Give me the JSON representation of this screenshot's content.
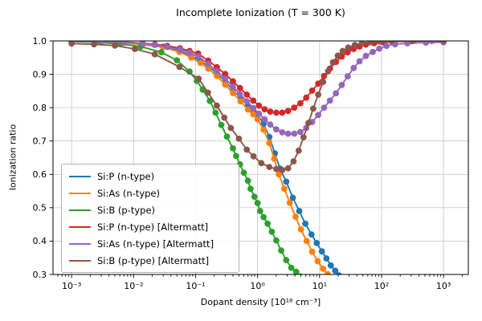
{
  "figure": {
    "background": "#ffffff"
  },
  "chart_data": {
    "type": "line",
    "title": "Incomplete Ionization (T = 300 K)",
    "xlabel": "Dopant density [10¹⁸ cm⁻³]",
    "ylabel": "Ionization ratio",
    "x_scale": "log",
    "xlim_log10": [
      -3.3,
      3.4
    ],
    "ylim": [
      0.3,
      1.0
    ],
    "grid": true,
    "grid_color": "#cccccc",
    "spine_color": "#000000",
    "legend_position": "lower left",
    "x_ticks": [
      {
        "value": 0.001,
        "label": "10⁻³"
      },
      {
        "value": 0.01,
        "label": "10⁻²"
      },
      {
        "value": 0.1,
        "label": "10⁻¹"
      },
      {
        "value": 1,
        "label": "10⁰"
      },
      {
        "value": 10,
        "label": "10¹"
      },
      {
        "value": 100,
        "label": "10²"
      },
      {
        "value": 1000,
        "label": "10³"
      }
    ],
    "y_ticks": [
      {
        "value": 0.3,
        "label": "0.3"
      },
      {
        "value": 0.4,
        "label": "0.4"
      },
      {
        "value": 0.5,
        "label": "0.5"
      },
      {
        "value": 0.6,
        "label": "0.6"
      },
      {
        "value": 0.7,
        "label": "0.7"
      },
      {
        "value": 0.8,
        "label": "0.8"
      },
      {
        "value": 0.9,
        "label": "0.9"
      },
      {
        "value": 1.0,
        "label": "1.0"
      }
    ],
    "series": [
      {
        "name": "Si:P (n-type)",
        "color": "#1f77b4",
        "points": [
          [
            0.001,
            1.0
          ],
          [
            0.003,
            0.998
          ],
          [
            0.007,
            0.995
          ],
          [
            0.014,
            0.991
          ],
          [
            0.03,
            0.983
          ],
          [
            0.055,
            0.971
          ],
          [
            0.085,
            0.955
          ],
          [
            0.12,
            0.94
          ],
          [
            0.16,
            0.924
          ],
          [
            0.22,
            0.903
          ],
          [
            0.3,
            0.878
          ],
          [
            0.4,
            0.853
          ],
          [
            0.53,
            0.829
          ],
          [
            0.7,
            0.806
          ],
          [
            0.85,
            0.793
          ],
          [
            1.0,
            0.78
          ],
          [
            1.25,
            0.752
          ],
          [
            1.55,
            0.712
          ],
          [
            1.9,
            0.663
          ],
          [
            2.3,
            0.617
          ],
          [
            2.9,
            0.578
          ],
          [
            3.7,
            0.53
          ],
          [
            4.7,
            0.49
          ],
          [
            5.9,
            0.452
          ],
          [
            7.4,
            0.42
          ],
          [
            9.0,
            0.394
          ],
          [
            10.9,
            0.369
          ],
          [
            12.9,
            0.348
          ],
          [
            15.2,
            0.327
          ],
          [
            17.9,
            0.311
          ],
          [
            20.5,
            0.297
          ]
        ]
      },
      {
        "name": "Si:As (n-type)",
        "color": "#ff7f0e",
        "points": [
          [
            0.001,
            1.0
          ],
          [
            0.003,
            0.998
          ],
          [
            0.007,
            0.994
          ],
          [
            0.014,
            0.989
          ],
          [
            0.03,
            0.981
          ],
          [
            0.055,
            0.967
          ],
          [
            0.085,
            0.95
          ],
          [
            0.12,
            0.934
          ],
          [
            0.16,
            0.917
          ],
          [
            0.22,
            0.895
          ],
          [
            0.3,
            0.869
          ],
          [
            0.4,
            0.844
          ],
          [
            0.53,
            0.819
          ],
          [
            0.7,
            0.794
          ],
          [
            0.85,
            0.78
          ],
          [
            1.0,
            0.765
          ],
          [
            1.25,
            0.734
          ],
          [
            1.55,
            0.694
          ],
          [
            1.85,
            0.647
          ],
          [
            2.2,
            0.6
          ],
          [
            2.7,
            0.557
          ],
          [
            3.3,
            0.515
          ],
          [
            4.1,
            0.473
          ],
          [
            5.0,
            0.435
          ],
          [
            6.2,
            0.4
          ],
          [
            7.6,
            0.368
          ],
          [
            9.3,
            0.34
          ],
          [
            11.4,
            0.317
          ],
          [
            13.5,
            0.301
          ],
          [
            14.8,
            0.292
          ]
        ]
      },
      {
        "name": "Si:B (p-type)",
        "color": "#2ca02c",
        "points": [
          [
            0.001,
            0.998
          ],
          [
            0.0025,
            0.996
          ],
          [
            0.006,
            0.991
          ],
          [
            0.013,
            0.983
          ],
          [
            0.028,
            0.966
          ],
          [
            0.05,
            0.942
          ],
          [
            0.08,
            0.908
          ],
          [
            0.105,
            0.88
          ],
          [
            0.13,
            0.854
          ],
          [
            0.17,
            0.82
          ],
          [
            0.21,
            0.785
          ],
          [
            0.26,
            0.748
          ],
          [
            0.32,
            0.713
          ],
          [
            0.4,
            0.678
          ],
          [
            0.45,
            0.655
          ],
          [
            0.52,
            0.63
          ],
          [
            0.6,
            0.605
          ],
          [
            0.7,
            0.581
          ],
          [
            0.77,
            0.557
          ],
          [
            0.89,
            0.533
          ],
          [
            1.0,
            0.514
          ],
          [
            1.1,
            0.49
          ],
          [
            1.25,
            0.472
          ],
          [
            1.45,
            0.452
          ],
          [
            1.7,
            0.428
          ],
          [
            2.0,
            0.402
          ],
          [
            2.4,
            0.372
          ],
          [
            2.9,
            0.343
          ],
          [
            3.5,
            0.32
          ],
          [
            4.2,
            0.308
          ],
          [
            4.9,
            0.294
          ]
        ]
      },
      {
        "name": "Si:P (n-type) [Altermatt]",
        "color": "#d62728",
        "points": [
          [
            0.001,
            1.0
          ],
          [
            0.003,
            0.999
          ],
          [
            0.007,
            0.997
          ],
          [
            0.014,
            0.993
          ],
          [
            0.022,
            0.99
          ],
          [
            0.035,
            0.985
          ],
          [
            0.056,
            0.978
          ],
          [
            0.08,
            0.97
          ],
          [
            0.11,
            0.962
          ],
          [
            0.16,
            0.941
          ],
          [
            0.22,
            0.921
          ],
          [
            0.3,
            0.901
          ],
          [
            0.4,
            0.879
          ],
          [
            0.52,
            0.859
          ],
          [
            0.67,
            0.839
          ],
          [
            0.85,
            0.821
          ],
          [
            1.05,
            0.806
          ],
          [
            1.3,
            0.795
          ],
          [
            1.6,
            0.788
          ],
          [
            2.0,
            0.785
          ],
          [
            2.5,
            0.785
          ],
          [
            3.1,
            0.79
          ],
          [
            3.9,
            0.8
          ],
          [
            4.9,
            0.813
          ],
          [
            6.1,
            0.83
          ],
          [
            7.6,
            0.851
          ],
          [
            9.5,
            0.872
          ],
          [
            11.8,
            0.895
          ],
          [
            14.7,
            0.917
          ],
          [
            18.3,
            0.937
          ],
          [
            22.8,
            0.953
          ],
          [
            28.4,
            0.966
          ],
          [
            35.4,
            0.976
          ],
          [
            44,
            0.983
          ],
          [
            56,
            0.989
          ],
          [
            76,
            0.993
          ],
          [
            105,
            0.996
          ],
          [
            160,
            0.998
          ],
          [
            300,
            0.999
          ],
          [
            650,
            1.0
          ],
          [
            1000,
            1.0
          ]
        ]
      },
      {
        "name": "Si:As (n-type) [Altermatt]",
        "color": "#9467bd",
        "points": [
          [
            0.001,
            1.0
          ],
          [
            0.003,
            0.998
          ],
          [
            0.007,
            0.996
          ],
          [
            0.014,
            0.992
          ],
          [
            0.022,
            0.988
          ],
          [
            0.035,
            0.982
          ],
          [
            0.056,
            0.974
          ],
          [
            0.08,
            0.965
          ],
          [
            0.11,
            0.954
          ],
          [
            0.16,
            0.931
          ],
          [
            0.22,
            0.909
          ],
          [
            0.3,
            0.887
          ],
          [
            0.4,
            0.863
          ],
          [
            0.52,
            0.841
          ],
          [
            0.67,
            0.819
          ],
          [
            0.85,
            0.799
          ],
          [
            1.05,
            0.782
          ],
          [
            1.3,
            0.765
          ],
          [
            1.6,
            0.749
          ],
          [
            2.0,
            0.735
          ],
          [
            2.5,
            0.726
          ],
          [
            3.1,
            0.722
          ],
          [
            3.9,
            0.722
          ],
          [
            4.9,
            0.727
          ],
          [
            6.1,
            0.739
          ],
          [
            7.6,
            0.757
          ],
          [
            9.5,
            0.778
          ],
          [
            11.8,
            0.8
          ],
          [
            14.7,
            0.821
          ],
          [
            18.3,
            0.843
          ],
          [
            22.8,
            0.868
          ],
          [
            28.4,
            0.894
          ],
          [
            35.4,
            0.919
          ],
          [
            44,
            0.939
          ],
          [
            56,
            0.955
          ],
          [
            72,
            0.967
          ],
          [
            92,
            0.977
          ],
          [
            120,
            0.985
          ],
          [
            165,
            0.99
          ],
          [
            260,
            0.993
          ],
          [
            520,
            0.995
          ],
          [
            1000,
            0.996
          ]
        ]
      },
      {
        "name": "Si:B (p-type) [Altermatt]",
        "color": "#8c564b",
        "points": [
          [
            0.001,
            0.992
          ],
          [
            0.0023,
            0.99
          ],
          [
            0.005,
            0.986
          ],
          [
            0.0105,
            0.976
          ],
          [
            0.022,
            0.96
          ],
          [
            0.055,
            0.922
          ],
          [
            0.112,
            0.887
          ],
          [
            0.158,
            0.845
          ],
          [
            0.22,
            0.806
          ],
          [
            0.29,
            0.77
          ],
          [
            0.37,
            0.739
          ],
          [
            0.5,
            0.707
          ],
          [
            0.67,
            0.674
          ],
          [
            0.86,
            0.654
          ],
          [
            1.15,
            0.634
          ],
          [
            1.55,
            0.622
          ],
          [
            2.0,
            0.616
          ],
          [
            2.5,
            0.613
          ],
          [
            3.1,
            0.618
          ],
          [
            3.8,
            0.639
          ],
          [
            4.6,
            0.671
          ],
          [
            5.5,
            0.711
          ],
          [
            6.6,
            0.754
          ],
          [
            7.9,
            0.797
          ],
          [
            9.5,
            0.839
          ],
          [
            11.4,
            0.877
          ],
          [
            13.7,
            0.909
          ],
          [
            16.4,
            0.936
          ],
          [
            19.7,
            0.956
          ],
          [
            23.6,
            0.97
          ],
          [
            29,
            0.98
          ],
          [
            37,
            0.988
          ],
          [
            48,
            0.993
          ],
          [
            65,
            0.996
          ],
          [
            92,
            0.998
          ],
          [
            145,
            0.999
          ],
          [
            320,
            1.0
          ],
          [
            1000,
            1.0
          ]
        ]
      }
    ]
  }
}
